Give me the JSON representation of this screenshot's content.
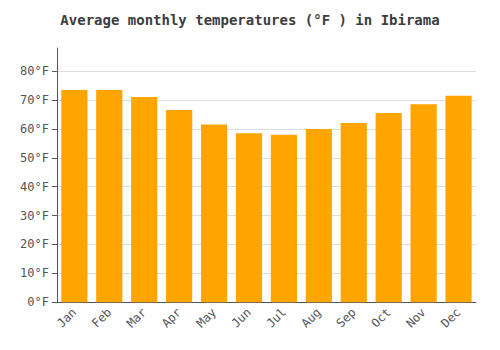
{
  "chart_data": {
    "type": "bar",
    "title": "Average monthly temperatures (°F ) in Ibirama",
    "categories": [
      "Jan",
      "Feb",
      "Mar",
      "Apr",
      "May",
      "Jun",
      "Jul",
      "Aug",
      "Sep",
      "Oct",
      "Nov",
      "Dec"
    ],
    "values": [
      73.5,
      73.5,
      71.0,
      66.5,
      61.5,
      58.5,
      58.0,
      60.0,
      62.0,
      65.5,
      68.5,
      71.5
    ],
    "color": "#FFA500",
    "ylim": [
      0,
      88
    ],
    "yticks": [
      {
        "value": 0,
        "label": "0°F"
      },
      {
        "value": 10,
        "label": "10°F"
      },
      {
        "value": 20,
        "label": "20°F"
      },
      {
        "value": 30,
        "label": "30°F"
      },
      {
        "value": 40,
        "label": "40°F"
      },
      {
        "value": 50,
        "label": "50°F"
      },
      {
        "value": 60,
        "label": "60°F"
      },
      {
        "value": 70,
        "label": "70°F"
      },
      {
        "value": 80,
        "label": "80°F"
      }
    ],
    "grid": true
  }
}
